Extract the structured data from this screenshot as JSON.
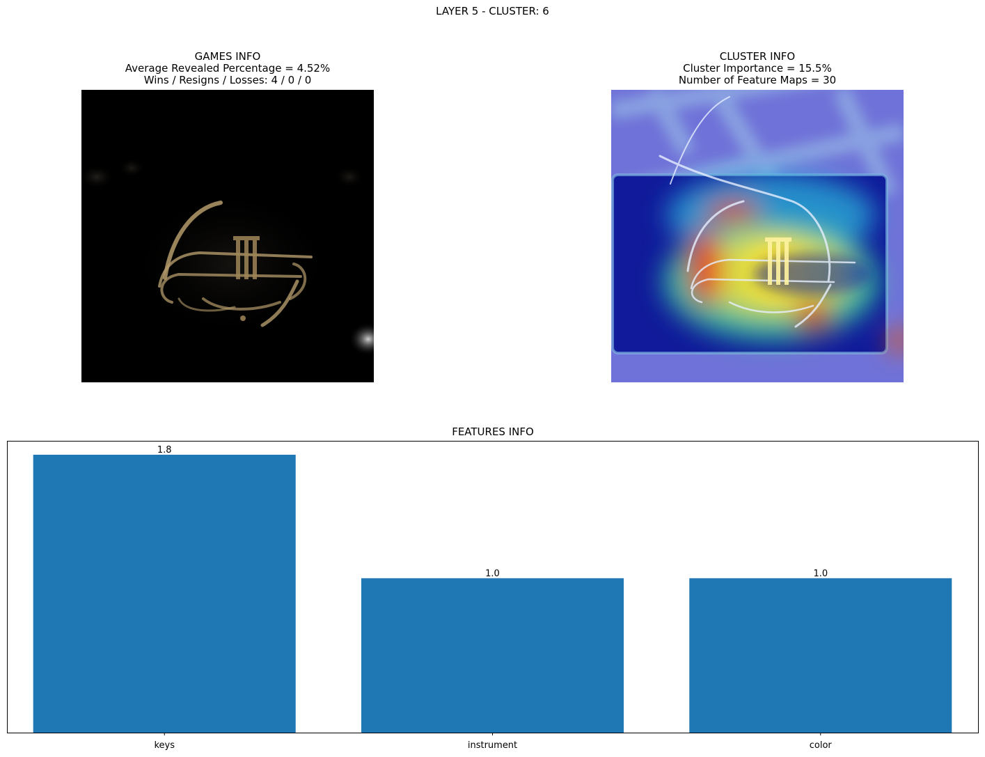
{
  "figure": {
    "title": "LAYER 5 - CLUSTER: 6"
  },
  "games_info": {
    "title": "GAMES INFO",
    "line1": "Average Revealed Percentage = 4.52%",
    "line2": "Wins / Resigns / Losses: 4 / 0 / 0",
    "image": "masked-trumpet-image"
  },
  "cluster_info": {
    "title": "CLUSTER INFO",
    "line1": "Cluster Importance = 15.5%",
    "line2": "Number of Feature Maps = 30",
    "image": "trumpet-heatmap-overlay-image"
  },
  "chart_data": {
    "type": "bar",
    "title": "FEATURES INFO",
    "categories": [
      "keys",
      "instrument",
      "color"
    ],
    "values": [
      1.8,
      1.0,
      1.0
    ],
    "value_labels": [
      "1.8",
      "1.0",
      "1.0"
    ],
    "ylim": [
      0,
      1.89
    ],
    "y_ticks_visible": false,
    "grid": false,
    "bar_color": "#1f77b4"
  }
}
